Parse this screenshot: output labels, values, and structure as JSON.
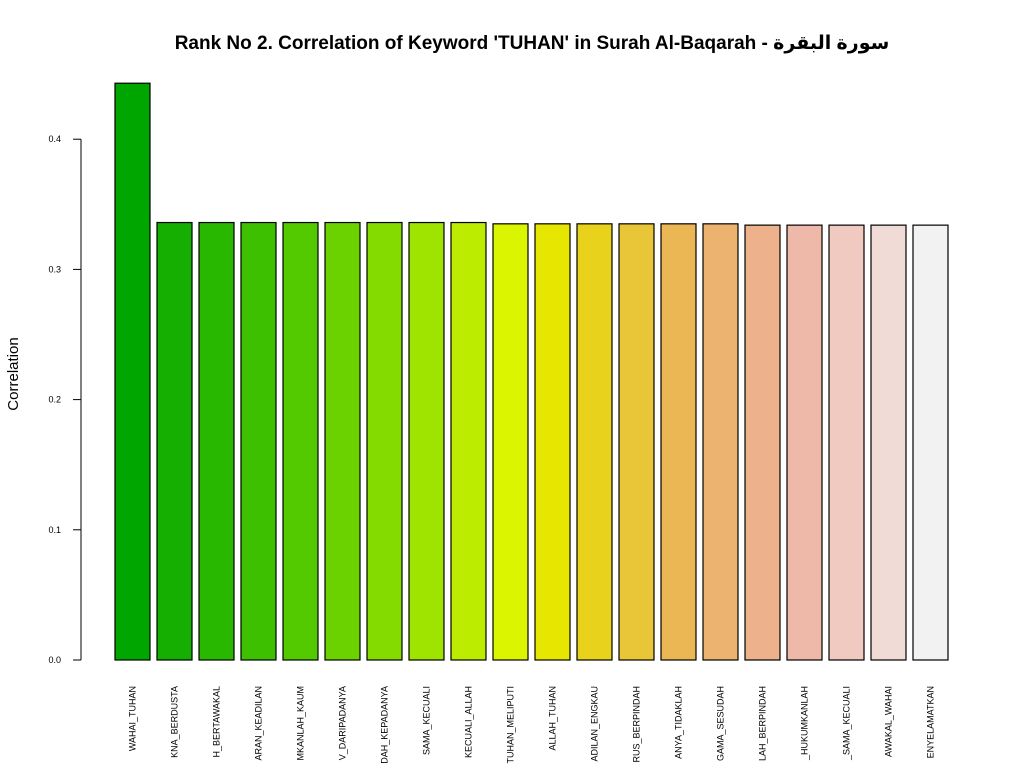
{
  "chart_data": {
    "type": "bar",
    "title": "Rank No 2. Correlation of Keyword 'TUHAN' in Surah Al-Baqarah - سورة البقرة",
    "xlabel": "",
    "ylabel": "Correlation",
    "ylim": [
      0,
      0.45
    ],
    "yticks": [
      "0.0",
      "0.1",
      "0.2",
      "0.3",
      "0.4"
    ],
    "grid": false,
    "legend": "none",
    "categories": [
      "WAHAI_TUHAN",
      "KNA_BERDUSTA",
      "H_BERTAWAKAL",
      "ARAN_KEADILAN",
      "MKANLAH_KAUM",
      "V_DARIPADANYA",
      "DAH_KEPADANYA",
      "SAMA_KECUALI",
      "KECUALI_ALLAH",
      "TUHAN_MELIPUTI",
      "ALLAH_TUHAN",
      "ADILAN_ENGKAU",
      "RUS_BERPINDAH",
      "ANYA_TIDAKLAH",
      "GAMA_SESUDAH",
      "LAH_BERPINDAH",
      "_HUKUMKANLAH",
      "_SAMA_KECUALI",
      "AWAKAL_WAHAI",
      "ENYELAMATKAN"
    ],
    "values": [
      0.443,
      0.336,
      0.336,
      0.336,
      0.336,
      0.336,
      0.336,
      0.336,
      0.336,
      0.335,
      0.335,
      0.335,
      0.335,
      0.335,
      0.335,
      0.334,
      0.334,
      0.334,
      0.334,
      0.334
    ],
    "colors": [
      "#00A600",
      "#14AF00",
      "#28B800",
      "#3DC000",
      "#53C900",
      "#6BD200",
      "#84DB00",
      "#9FE300",
      "#BCEC00",
      "#DBF500",
      "#E6E600",
      "#E8D21C",
      "#E9C638",
      "#EBB754",
      "#ECB370",
      "#EDB28C",
      "#EEB9A8",
      "#F0C9C0",
      "#F1DBD7",
      "#F2F2F2"
    ]
  }
}
